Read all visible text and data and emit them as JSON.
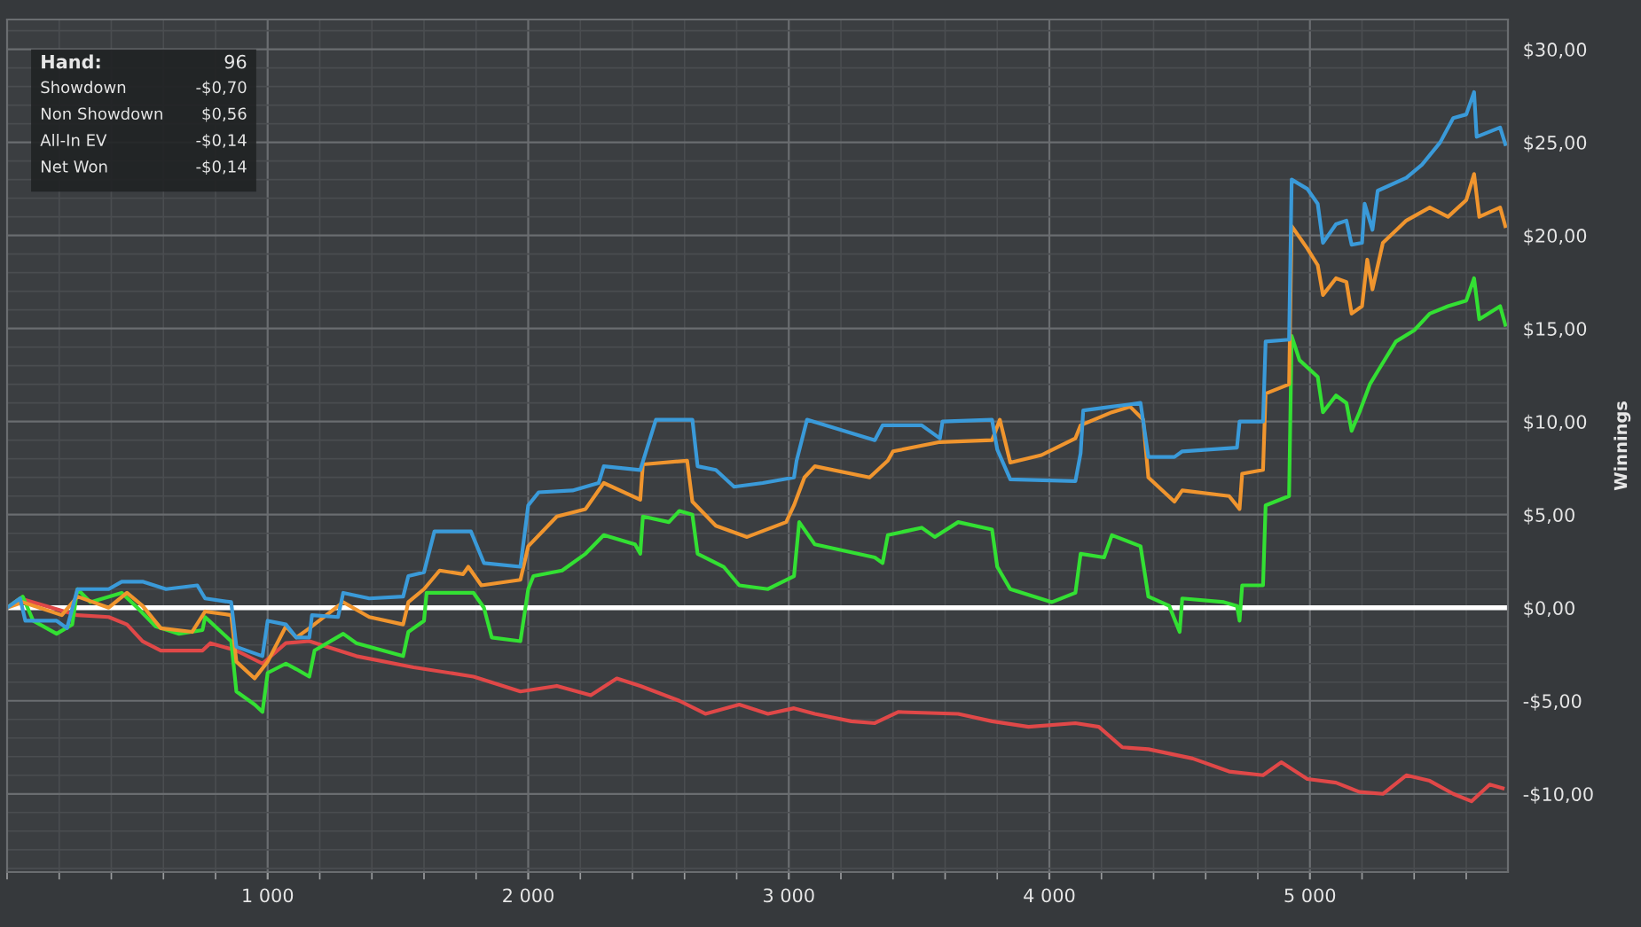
{
  "chart_data": {
    "type": "line",
    "ylabel": "Winnings",
    "annotations": [
      "Hand:",
      "96",
      "Showdown",
      "-$0,70",
      "Non Showdown",
      "$0,56",
      "All-In EV",
      "-$0,14",
      "Net Won",
      "-$0,14"
    ],
    "xlim": [
      0,
      5760
    ],
    "ylim": [
      -14.2,
      31.6
    ],
    "xticks": [
      {
        "value": 1000,
        "label": "1 000"
      },
      {
        "value": 2000,
        "label": "2 000"
      },
      {
        "value": 3000,
        "label": "3 000"
      },
      {
        "value": 4000,
        "label": "4 000"
      },
      {
        "value": 5000,
        "label": "5 000"
      }
    ],
    "yticks": [
      {
        "value": -10,
        "label": "-$10,00"
      },
      {
        "value": -5,
        "label": "-$5,00"
      },
      {
        "value": 0,
        "label": "$0,00"
      },
      {
        "value": 5,
        "label": "$5,00"
      },
      {
        "value": 10,
        "label": "$10,00"
      },
      {
        "value": 15,
        "label": "$15,00"
      },
      {
        "value": 20,
        "label": "$20,00"
      },
      {
        "value": 25,
        "label": "$25,00"
      },
      {
        "value": 30,
        "label": "$30,00"
      }
    ],
    "grid": true,
    "marker": "none",
    "line_style": "solid",
    "ref_lines": [
      {
        "axis": "y",
        "value": 0,
        "color": "#ffffff"
      }
    ],
    "series": [
      {
        "color": "#e04848",
        "x": [
          0,
          50,
          270,
          390,
          460,
          520,
          590,
          750,
          780,
          880,
          980,
          1070,
          1160,
          1340,
          1560,
          1790,
          1970,
          2110,
          2240,
          2340,
          2430,
          2580,
          2680,
          2810,
          2920,
          3020,
          3100,
          3240,
          3330,
          3420,
          3650,
          3780,
          3920,
          4100,
          4190,
          4280,
          4380,
          4550,
          4690,
          4820,
          4890,
          4990,
          5100,
          5190,
          5280,
          5370,
          5460,
          5550,
          5620,
          5690,
          5740
        ],
        "values": [
          0,
          0.5,
          -0.4,
          -0.5,
          -0.9,
          -1.8,
          -2.3,
          -2.3,
          -1.9,
          -2.3,
          -3.0,
          -1.9,
          -1.8,
          -2.6,
          -3.2,
          -3.7,
          -4.5,
          -4.2,
          -4.7,
          -3.8,
          -4.2,
          -5.0,
          -5.7,
          -5.2,
          -5.7,
          -5.4,
          -5.7,
          -6.1,
          -6.2,
          -5.6,
          -5.7,
          -6.1,
          -6.4,
          -6.2,
          -6.4,
          -7.5,
          -7.6,
          -8.1,
          -8.8,
          -9.0,
          -8.3,
          -9.2,
          -9.4,
          -9.9,
          -10.0,
          -9.0,
          -9.3,
          -10.0,
          -10.4,
          -9.5,
          -9.7
        ]
      },
      {
        "color": "#33e033",
        "x": [
          0,
          60,
          100,
          190,
          250,
          270,
          320,
          440,
          500,
          570,
          660,
          750,
          760,
          860,
          880,
          950,
          980,
          1000,
          1070,
          1110,
          1160,
          1180,
          1290,
          1340,
          1520,
          1540,
          1600,
          1610,
          1660,
          1790,
          1830,
          1860,
          1970,
          2000,
          2020,
          2130,
          2220,
          2290,
          2410,
          2430,
          2440,
          2540,
          2580,
          2630,
          2650,
          2750,
          2810,
          2920,
          3020,
          3040,
          3100,
          3330,
          3360,
          3380,
          3510,
          3560,
          3650,
          3780,
          3800,
          3850,
          4010,
          4100,
          4120,
          4210,
          4240,
          4350,
          4380,
          4460,
          4500,
          4510,
          4670,
          4720,
          4730,
          4740,
          4820,
          4830,
          4920,
          4930,
          4960,
          5030,
          5050,
          5100,
          5140,
          5160,
          5190,
          5230,
          5260,
          5330,
          5400,
          5460,
          5530,
          5600,
          5630,
          5650,
          5730,
          5750
        ],
        "values": [
          0,
          0.6,
          -0.7,
          -1.4,
          -0.9,
          1.0,
          0.3,
          0.8,
          0,
          -1.0,
          -1.4,
          -1.2,
          -0.5,
          -1.8,
          -4.5,
          -5.2,
          -5.6,
          -3.5,
          -3.0,
          -3.3,
          -3.7,
          -2.3,
          -1.4,
          -1.9,
          -2.6,
          -1.3,
          -0.7,
          0.8,
          0.8,
          0.8,
          0,
          -1.6,
          -1.8,
          1.0,
          1.7,
          2.0,
          2.9,
          3.9,
          3.4,
          2.9,
          4.9,
          4.6,
          5.2,
          5.0,
          2.9,
          2.2,
          1.2,
          1.0,
          1.7,
          4.6,
          3.4,
          2.7,
          2.4,
          3.9,
          4.3,
          3.8,
          4.6,
          4.2,
          2.2,
          1.0,
          0.3,
          0.8,
          2.9,
          2.7,
          3.9,
          3.3,
          0.6,
          0.1,
          -1.3,
          0.5,
          0.3,
          0.1,
          -0.7,
          1.2,
          1.2,
          5.5,
          6.0,
          14.6,
          13.3,
          12.4,
          10.5,
          11.4,
          11.0,
          9.5,
          10.5,
          12.0,
          12.7,
          14.3,
          14.9,
          15.8,
          16.2,
          16.5,
          17.7,
          15.5,
          16.2,
          15.2
        ]
      },
      {
        "color": "#f0952e",
        "x": [
          0,
          60,
          210,
          270,
          390,
          460,
          520,
          590,
          710,
          760,
          860,
          880,
          950,
          1000,
          1070,
          1110,
          1160,
          1290,
          1390,
          1520,
          1540,
          1600,
          1660,
          1750,
          1770,
          1820,
          1970,
          2000,
          2110,
          2220,
          2290,
          2430,
          2440,
          2610,
          2630,
          2720,
          2840,
          2990,
          3020,
          3060,
          3100,
          3310,
          3380,
          3400,
          3580,
          3780,
          3810,
          3850,
          3970,
          4100,
          4120,
          4240,
          4310,
          4360,
          4380,
          4480,
          4510,
          4690,
          4730,
          4740,
          4820,
          4830,
          4920,
          4930,
          4990,
          5030,
          5050,
          5100,
          5140,
          5160,
          5200,
          5220,
          5240,
          5280,
          5370,
          5460,
          5530,
          5600,
          5630,
          5650,
          5730,
          5750
        ],
        "values": [
          0,
          0.3,
          -0.4,
          0.6,
          0,
          0.8,
          0.1,
          -1.1,
          -1.3,
          -0.2,
          -0.4,
          -2.9,
          -3.8,
          -2.9,
          -1.0,
          -1.6,
          -1.1,
          0.3,
          -0.5,
          -0.9,
          0.3,
          1.0,
          2.0,
          1.8,
          2.2,
          1.2,
          1.5,
          3.3,
          4.9,
          5.3,
          6.7,
          5.8,
          7.7,
          7.9,
          5.7,
          4.4,
          3.8,
          4.6,
          5.5,
          7.0,
          7.6,
          7.0,
          7.9,
          8.4,
          8.9,
          9.0,
          10.1,
          7.8,
          8.2,
          9.1,
          9.8,
          10.5,
          10.8,
          10.1,
          7.0,
          5.7,
          6.3,
          6.0,
          5.3,
          7.2,
          7.4,
          11.5,
          12.0,
          20.5,
          19.3,
          18.4,
          16.8,
          17.7,
          17.5,
          15.8,
          16.2,
          18.7,
          17.1,
          19.6,
          20.8,
          21.5,
          21.0,
          21.9,
          23.3,
          21.0,
          21.5,
          20.5
        ]
      },
      {
        "color": "#3a9ad9",
        "x": [
          0,
          50,
          70,
          190,
          230,
          270,
          390,
          440,
          520,
          610,
          730,
          760,
          860,
          880,
          980,
          1000,
          1070,
          1110,
          1160,
          1170,
          1270,
          1290,
          1390,
          1520,
          1540,
          1600,
          1640,
          1780,
          1830,
          1970,
          2000,
          2040,
          2170,
          2270,
          2290,
          2430,
          2490,
          2630,
          2650,
          2720,
          2790,
          2900,
          3020,
          3030,
          3070,
          3330,
          3360,
          3510,
          3580,
          3590,
          3780,
          3800,
          3850,
          4100,
          4120,
          4130,
          4240,
          4350,
          4380,
          4480,
          4510,
          4720,
          4730,
          4820,
          4830,
          4920,
          4930,
          4990,
          5030,
          5050,
          5100,
          5140,
          5160,
          5200,
          5210,
          5240,
          5260,
          5370,
          5430,
          5500,
          5550,
          5600,
          5630,
          5640,
          5730,
          5750
        ],
        "values": [
          0,
          0.5,
          -0.7,
          -0.7,
          -1.1,
          1.0,
          1.0,
          1.4,
          1.4,
          1.0,
          1.2,
          0.5,
          0.3,
          -2.1,
          -2.6,
          -0.7,
          -0.9,
          -1.6,
          -1.6,
          -0.4,
          -0.5,
          0.8,
          0.5,
          0.6,
          1.7,
          1.9,
          4.1,
          4.1,
          2.4,
          2.2,
          5.5,
          6.2,
          6.3,
          6.7,
          7.6,
          7.4,
          10.1,
          10.1,
          7.6,
          7.4,
          6.5,
          6.7,
          7.0,
          7.9,
          10.1,
          9.0,
          9.8,
          9.8,
          9.1,
          10.0,
          10.1,
          8.5,
          6.9,
          6.8,
          8.3,
          10.6,
          10.8,
          11.0,
          8.1,
          8.1,
          8.4,
          8.6,
          10.0,
          10.0,
          14.3,
          14.4,
          23.0,
          22.5,
          21.7,
          19.6,
          20.6,
          20.8,
          19.5,
          19.6,
          21.7,
          20.3,
          22.4,
          23.1,
          23.8,
          25.0,
          26.3,
          26.5,
          27.7,
          25.3,
          25.8,
          24.9
        ]
      }
    ]
  }
}
